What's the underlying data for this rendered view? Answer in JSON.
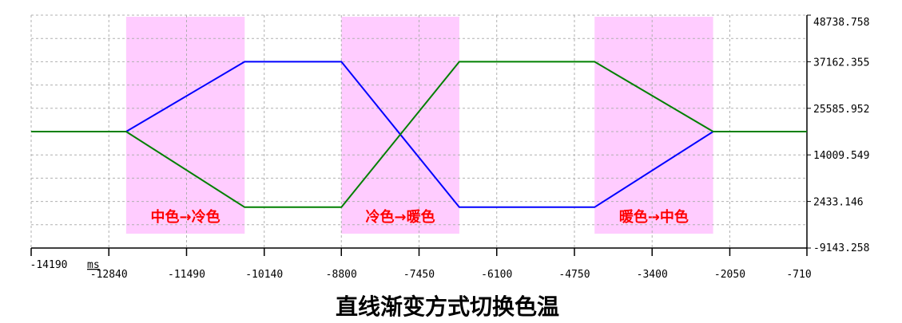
{
  "chart_data": {
    "type": "line",
    "title": "直线渐变方式切换色温",
    "x_unit_label": "ms",
    "xlim": [
      -14190,
      -710
    ],
    "ylim": [
      -9143.258,
      48738.758
    ],
    "x_ticks": [
      -14190,
      -12840,
      -11490,
      -10140,
      -8800,
      -7450,
      -6100,
      -4750,
      -3400,
      -2050,
      -710
    ],
    "y_ticks": [
      -9143.258,
      2433.146,
      14009.549,
      25585.952,
      37162.355,
      48738.758
    ],
    "y_tick_labels": [
      "-9143.258",
      "2433.146",
      "14009.549",
      "25585.952",
      "37162.355",
      "48738.758"
    ],
    "grid": true,
    "colors": {
      "region": "#ffccff",
      "blue": "#0000ff",
      "green": "#008000",
      "grid": "#b0b0b0",
      "region_text": "#ff0000"
    },
    "regions": [
      {
        "x0": -12540,
        "x1": -10480,
        "label": "中色→冷色"
      },
      {
        "x0": -8800,
        "x1": -6750,
        "label": "冷色→暖色"
      },
      {
        "x0": -4400,
        "x1": -2340,
        "label": "暖色→中色"
      }
    ],
    "series": [
      {
        "color": "blue",
        "x": [
          -14190,
          -12540,
          -10480,
          -8800,
          -6750,
          -4400,
          -2340,
          -710
        ],
        "y": [
          19800,
          19800,
          37162,
          37162,
          1000,
          1000,
          19800,
          19800
        ]
      },
      {
        "color": "green",
        "x": [
          -14190,
          -12540,
          -10480,
          -8800,
          -6750,
          -4400,
          -2340,
          -710
        ],
        "y": [
          19800,
          19800,
          1000,
          1000,
          37162,
          37162,
          19800,
          19800
        ]
      }
    ]
  }
}
